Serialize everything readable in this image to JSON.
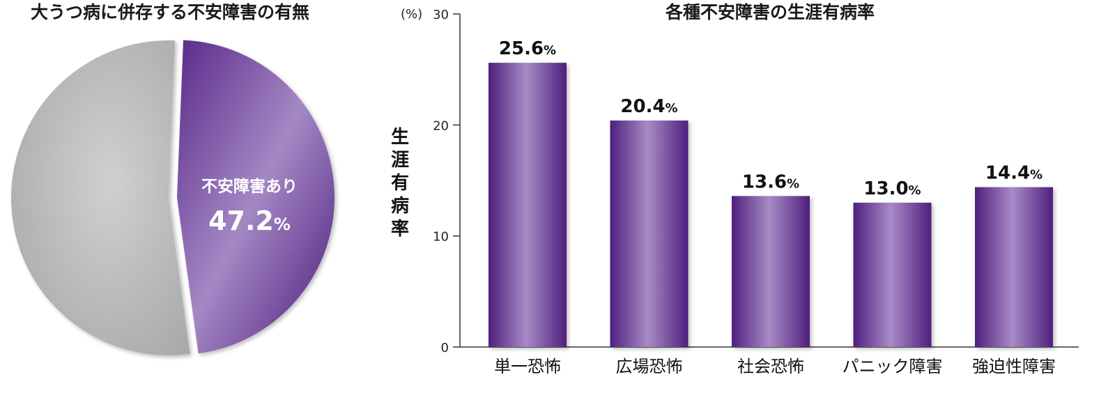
{
  "chart_data": [
    {
      "type": "pie",
      "title": "大うつ病に併存する不安障害の有無",
      "slices": [
        {
          "label": "不安障害あり",
          "value": 47.2,
          "value_text": "47.2",
          "unit": "%",
          "color": "#6a3d9a",
          "exploded": true
        },
        {
          "label": "",
          "value": 52.8,
          "color": "#bfbfbf"
        }
      ]
    },
    {
      "type": "bar",
      "title": "各種不安障害の生涯有病率",
      "ylabel": "生涯有病率",
      "yunit": "(%)",
      "ylim": [
        0,
        30
      ],
      "yticks": [
        0,
        10,
        20,
        30
      ],
      "categories": [
        "単一恐怖",
        "広場恐怖",
        "社会恐怖",
        "パニック障害",
        "強迫性障害"
      ],
      "values": [
        25.6,
        20.4,
        13.6,
        13.0,
        14.4
      ],
      "value_labels": [
        "25.6",
        "20.4",
        "13.6",
        "13.0",
        "14.4"
      ],
      "value_unit": "%",
      "bar_color": "#5b2a86",
      "grid": false
    }
  ]
}
